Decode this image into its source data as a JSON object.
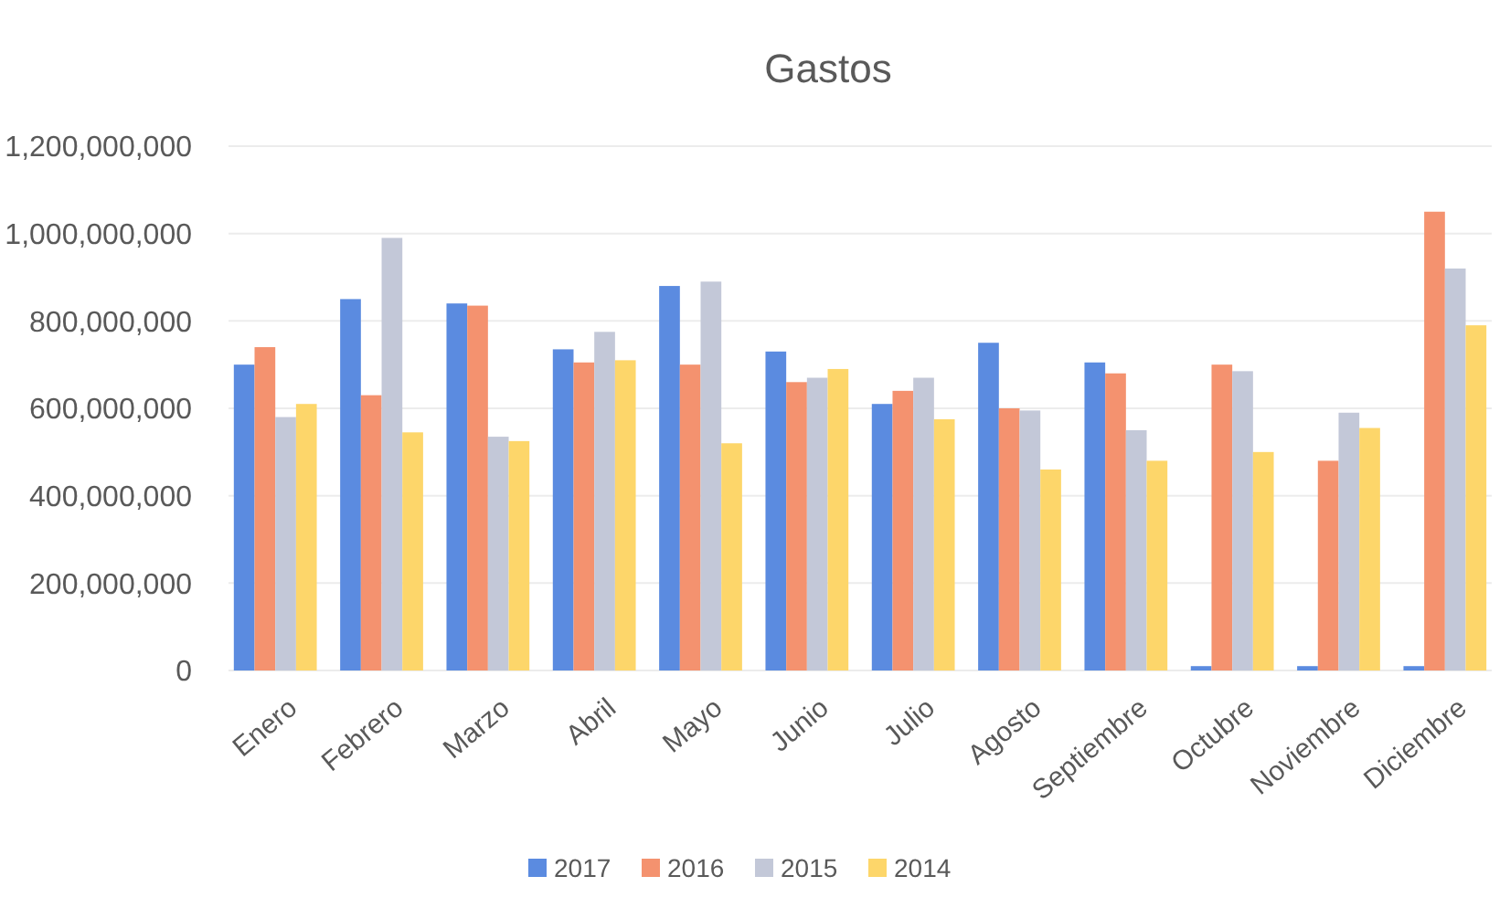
{
  "chart_data": {
    "type": "bar",
    "title": "Gastos",
    "categories": [
      "Enero",
      "Febrero",
      "Marzo",
      "Abril",
      "Mayo",
      "Junio",
      "Julio",
      "Agosto",
      "Septiembre",
      "Octubre",
      "Noviembre",
      "Diciembre"
    ],
    "series": [
      {
        "name": "2017",
        "color": "#5b8be0",
        "values": [
          700000000,
          850000000,
          840000000,
          735000000,
          880000000,
          730000000,
          610000000,
          750000000,
          705000000,
          10000000,
          10000000,
          10000000
        ]
      },
      {
        "name": "2016",
        "color": "#f4926f",
        "values": [
          740000000,
          630000000,
          835000000,
          705000000,
          700000000,
          660000000,
          640000000,
          600000000,
          680000000,
          700000000,
          480000000,
          1050000000
        ]
      },
      {
        "name": "2015",
        "color": "#c3c8d8",
        "values": [
          580000000,
          990000000,
          535000000,
          775000000,
          890000000,
          670000000,
          670000000,
          595000000,
          550000000,
          685000000,
          590000000,
          920000000
        ]
      },
      {
        "name": "2014",
        "color": "#fdd66a",
        "values": [
          610000000,
          545000000,
          525000000,
          710000000,
          520000000,
          690000000,
          575000000,
          460000000,
          480000000,
          500000000,
          555000000,
          790000000
        ]
      }
    ],
    "ylim": [
      0,
      1200000000
    ],
    "yticks": [
      {
        "value": 0,
        "label": "0"
      },
      {
        "value": 200000000,
        "label": "200,000,000"
      },
      {
        "value": 400000000,
        "label": "400,000,000"
      },
      {
        "value": 600000000,
        "label": "600,000,000"
      },
      {
        "value": 800000000,
        "label": "800,000,000"
      },
      {
        "value": 1000000000,
        "label": "1,000,000,000"
      },
      {
        "value": 1200000000,
        "label": "1,200,000,000"
      }
    ],
    "grid": true,
    "legend": "bottom"
  }
}
